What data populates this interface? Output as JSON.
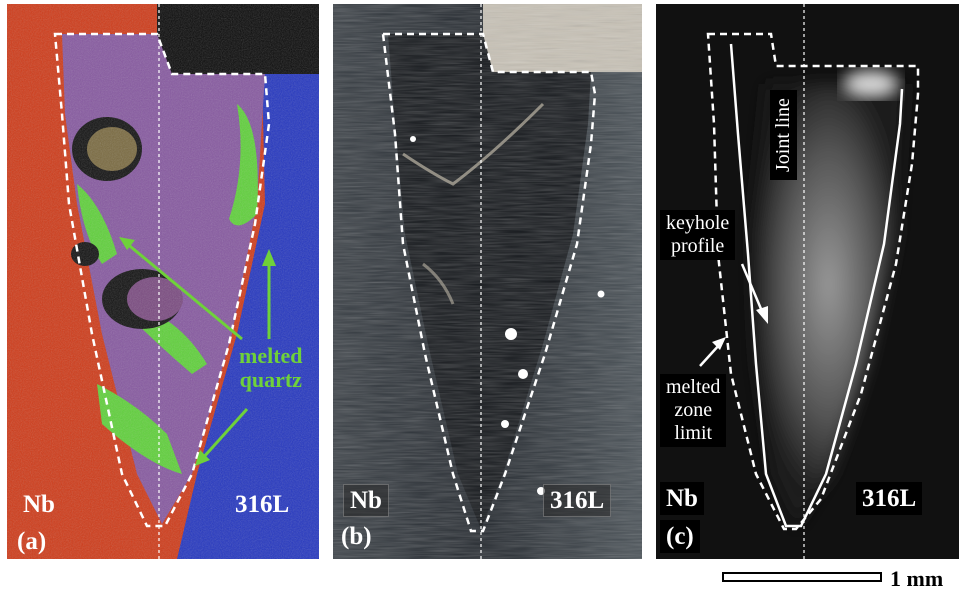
{
  "panel_a": {
    "material_left": "Nb",
    "material_right": "316L",
    "panel_label": "(a)",
    "annotation": "melted\nquartz",
    "colors": {
      "nb": "#d63a16",
      "steel": "#2233c4",
      "quartz": "#5fd13a",
      "mix": "#8a5aa0"
    }
  },
  "panel_b": {
    "material_left": "Nb",
    "material_right": "316L",
    "panel_label": "(b)"
  },
  "panel_c": {
    "material_left": "Nb",
    "material_right": "316L",
    "panel_label": "(c)",
    "keyhole_label": "keyhole\nprofile",
    "melted_zone_label": "melted\nzone\nlimit",
    "joint_line_label": "Joint line"
  },
  "scale": {
    "label": "1 mm"
  }
}
